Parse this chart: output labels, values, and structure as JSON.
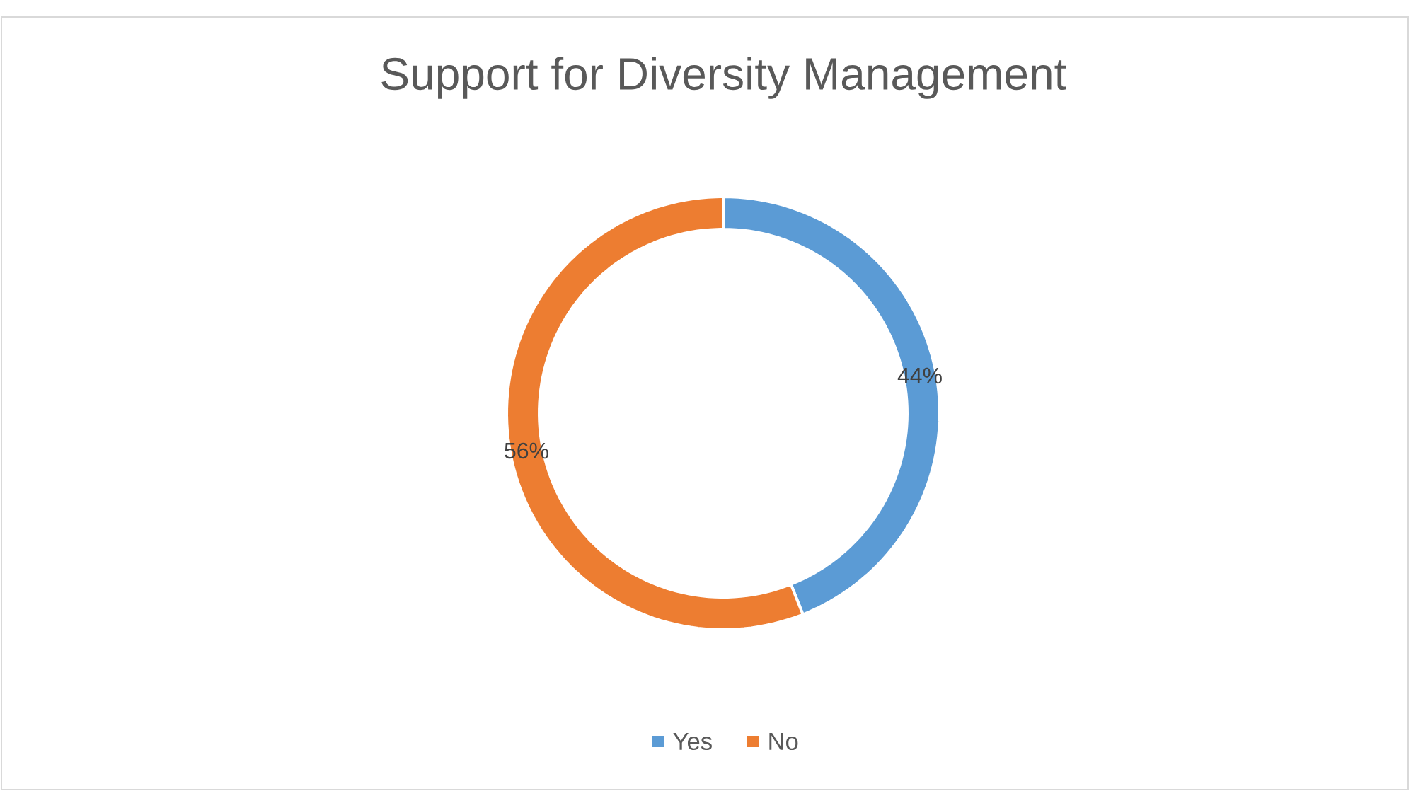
{
  "chart_data": {
    "type": "donut",
    "title": "Support for Diversity Management",
    "categories": [
      "Yes",
      "No"
    ],
    "values": [
      44,
      56
    ],
    "colors": [
      "#5b9bd5",
      "#ed7d31"
    ],
    "value_labels": [
      "44%",
      "56%"
    ],
    "legend": "bottom"
  }
}
